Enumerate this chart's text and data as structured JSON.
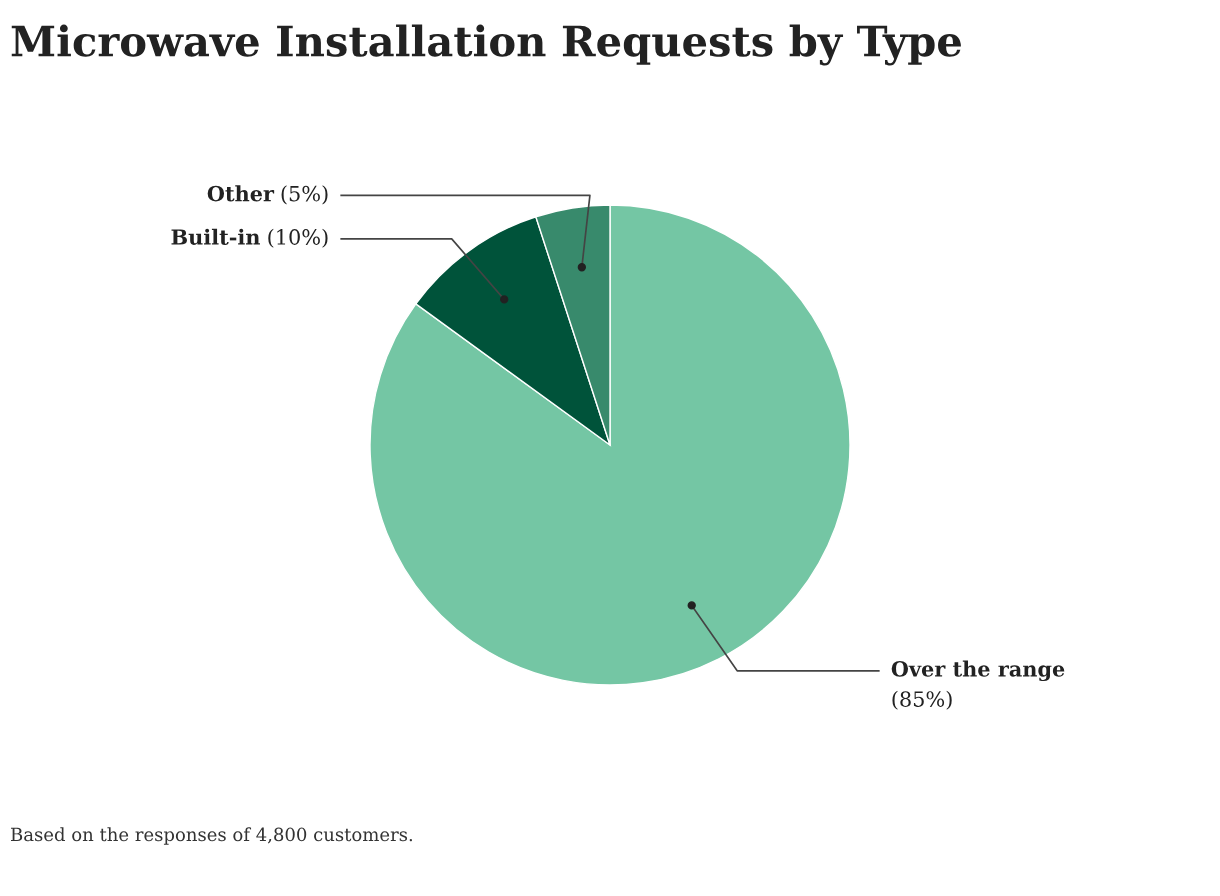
{
  "chart_data": {
    "type": "pie",
    "title": "Microwave Installation Requests by Type",
    "categories": [
      "Over the range",
      "Built-in",
      "Other"
    ],
    "values": [
      85,
      10,
      5
    ],
    "value_labels": [
      "(85%)",
      "(10%)",
      "(5%)"
    ],
    "colors": [
      "#74c6a4",
      "#00533a",
      "#388a6c"
    ],
    "annotations": [
      "Based on the responses of 4,800 customers."
    ]
  }
}
